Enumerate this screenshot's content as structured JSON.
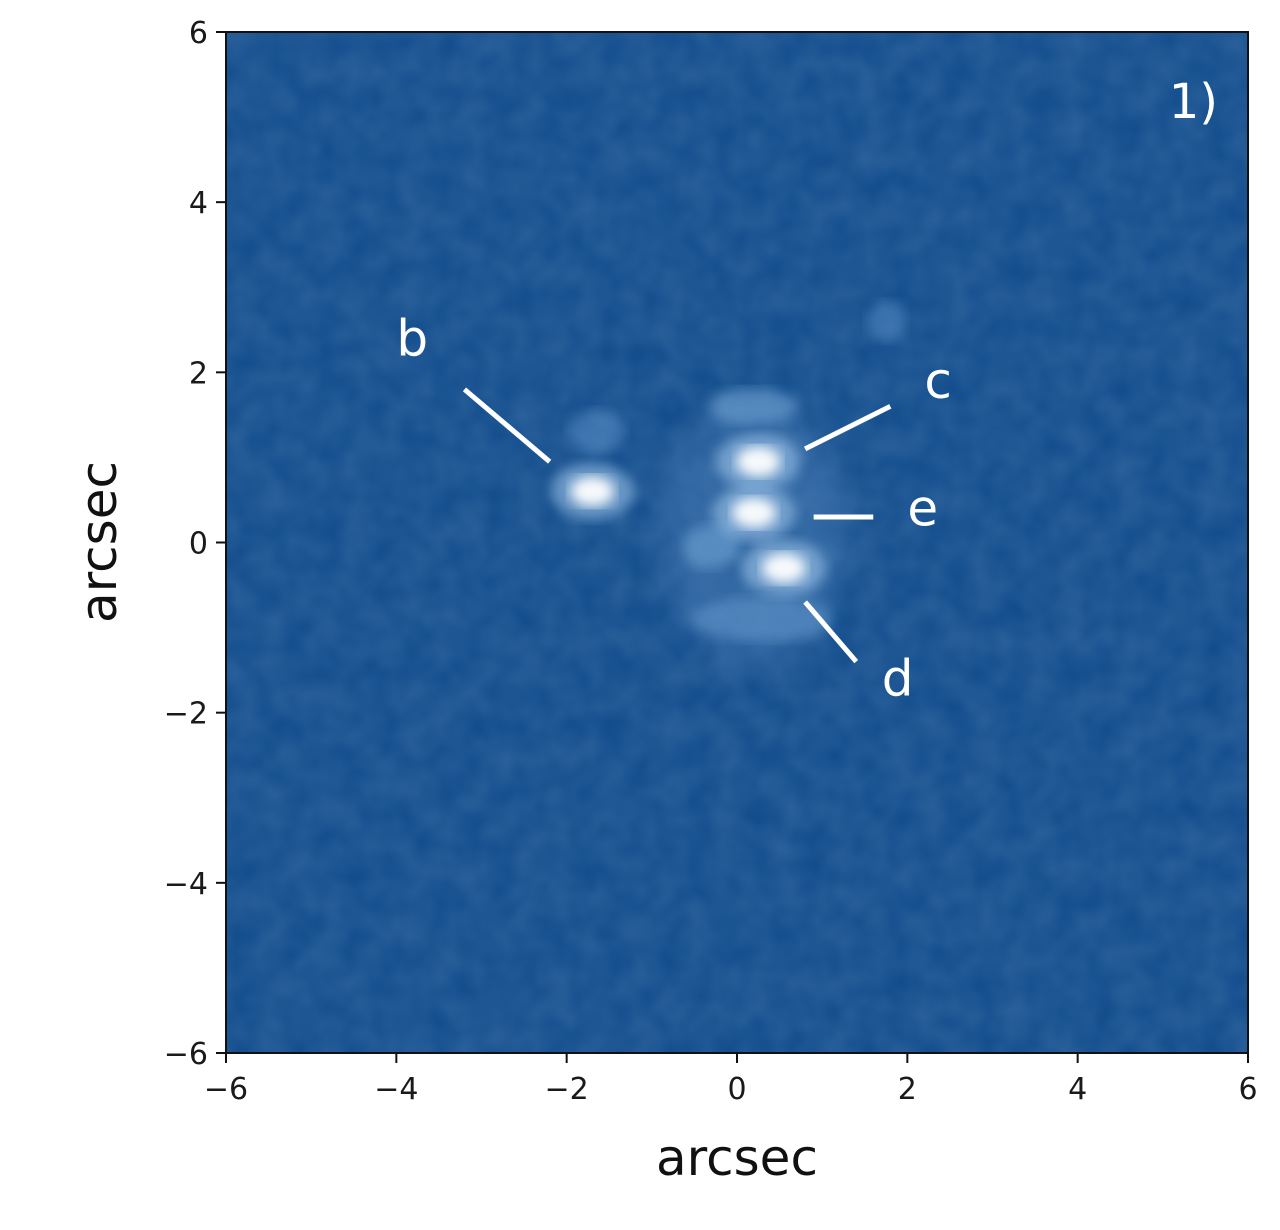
{
  "chart_data": {
    "type": "heatmap",
    "title": "",
    "panel_label": "1)",
    "xlabel": "arcsec",
    "ylabel": "arcsec",
    "xlim": [
      -6,
      6
    ],
    "ylim": [
      -6,
      6
    ],
    "xticks": [
      -6,
      -4,
      -2,
      0,
      2,
      4,
      6
    ],
    "yticks": [
      -6,
      -4,
      -2,
      0,
      2,
      4,
      6
    ],
    "xtick_labels": [
      "−6",
      "−4",
      "−2",
      "0",
      "2",
      "4",
      "6"
    ],
    "ytick_labels": [
      "6",
      "4",
      "2",
      "0",
      "−2",
      "−4",
      "−6"
    ],
    "colormap": {
      "background": "#0f4a8a",
      "mid": "#6fa0d0",
      "peak": "#ffffff"
    },
    "sources": [
      {
        "name": "b",
        "x": -1.7,
        "y": 0.6
      },
      {
        "name": "c",
        "x": 0.25,
        "y": 0.95
      },
      {
        "name": "e",
        "x": 0.2,
        "y": 0.35
      },
      {
        "name": "d",
        "x": 0.55,
        "y": -0.3
      }
    ],
    "annotations": [
      {
        "text": "b",
        "text_x": -4.0,
        "text_y": 2.2,
        "line": [
          [
            -3.2,
            1.8
          ],
          [
            -2.2,
            0.95
          ]
        ]
      },
      {
        "text": "c",
        "text_x": 2.2,
        "text_y": 1.7,
        "line": [
          [
            1.8,
            1.6
          ],
          [
            0.8,
            1.1
          ]
        ]
      },
      {
        "text": "e",
        "text_x": 2.0,
        "text_y": 0.2,
        "line": [
          [
            1.6,
            0.3
          ],
          [
            0.9,
            0.3
          ]
        ]
      },
      {
        "text": "d",
        "text_x": 1.7,
        "text_y": -1.8,
        "line": [
          [
            1.4,
            -1.4
          ],
          [
            0.8,
            -0.7
          ]
        ]
      }
    ]
  }
}
